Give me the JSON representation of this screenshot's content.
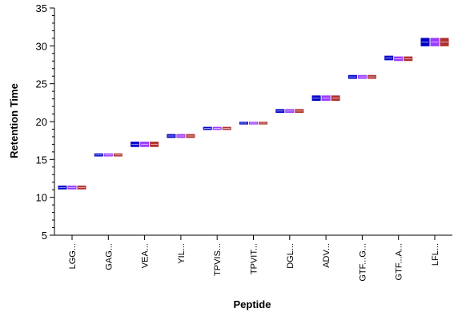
{
  "chart_data": {
    "type": "box",
    "xlabel": "Peptide",
    "ylabel": "Retention Time",
    "ylim": [
      5,
      35
    ],
    "yticks": [
      5,
      10,
      15,
      20,
      25,
      30,
      35
    ],
    "categories": [
      "LGG...",
      "GAG...",
      "VEA...",
      "YIL...",
      "TPVIS...",
      "TPVIT...",
      "DGL...",
      "ADV...",
      "GTF...G...",
      "GTF...A...",
      "LFL..."
    ],
    "series": [
      {
        "color": "#0000c8",
        "values": [
          11.3,
          15.6,
          17.0,
          18.1,
          19.1,
          19.8,
          21.4,
          23.1,
          25.9,
          28.4,
          30.5
        ]
      },
      {
        "color": "#9a3cff",
        "values": [
          11.3,
          15.6,
          17.0,
          18.1,
          19.1,
          19.8,
          21.4,
          23.1,
          25.9,
          28.3,
          30.5
        ]
      },
      {
        "color": "#b03030",
        "values": [
          11.3,
          15.6,
          17.0,
          18.1,
          19.1,
          19.8,
          21.4,
          23.1,
          25.9,
          28.3,
          30.5
        ]
      }
    ],
    "box_spreads": [
      [
        0.25,
        0.25,
        0.25
      ],
      [
        0.2,
        0.2,
        0.2
      ],
      [
        0.35,
        0.35,
        0.35
      ],
      [
        0.25,
        0.25,
        0.25
      ],
      [
        0.2,
        0.2,
        0.2
      ],
      [
        0.18,
        0.18,
        0.18
      ],
      [
        0.25,
        0.25,
        0.25
      ],
      [
        0.35,
        0.35,
        0.35
      ],
      [
        0.25,
        0.25,
        0.25
      ],
      [
        0.3,
        0.3,
        0.3
      ],
      [
        0.55,
        0.55,
        0.55
      ]
    ],
    "grid": false,
    "legend": "none"
  }
}
